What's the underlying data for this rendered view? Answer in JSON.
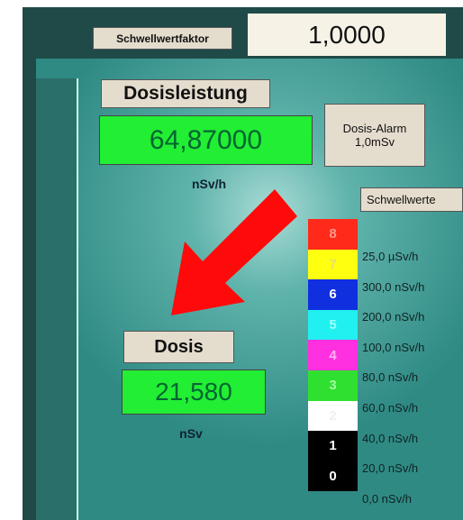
{
  "top_bar": {
    "factor_label": "Schwellwertfaktor",
    "factor_value": "1,0000"
  },
  "dose_rate": {
    "button": "Dosisleistung",
    "value": "64,87000",
    "unit": "nSv/h"
  },
  "alarm": {
    "title": "Dosis-Alarm",
    "value": "1,0mSv"
  },
  "thresholds": {
    "title": "Schwellwerte",
    "levels": [
      {
        "label": "8",
        "color": "#ff2a1a",
        "text_color": "#ff9a8a"
      },
      {
        "label": "7",
        "color": "#ffff10",
        "text_color": "#e8e070"
      },
      {
        "label": "6",
        "color": "#1030e0",
        "text_color": "#ffffff"
      },
      {
        "label": "5",
        "color": "#20f0f0",
        "text_color": "#a0ffff"
      },
      {
        "label": "4",
        "color": "#ff30e0",
        "text_color": "#ffb0f0"
      },
      {
        "label": "3",
        "color": "#30e030",
        "text_color": "#a0ffa0"
      },
      {
        "label": "2",
        "color": "#ffffff",
        "text_color": "#f0f0f0"
      },
      {
        "label": "1",
        "color": "#000000",
        "text_color": "#ffffff"
      },
      {
        "label": "0",
        "color": "#000000",
        "text_color": "#ffffff"
      }
    ],
    "values": [
      "25,0 µSv/h",
      "300,0 nSv/h",
      "200,0 nSv/h",
      "100,0 nSv/h",
      "80,0 nSv/h",
      "60,0 nSv/h",
      "40,0 nSv/h",
      "20,0 nSv/h",
      "0,0 nSv/h"
    ]
  },
  "dose": {
    "button": "Dosis",
    "value": "21,580",
    "unit": "nSv"
  }
}
